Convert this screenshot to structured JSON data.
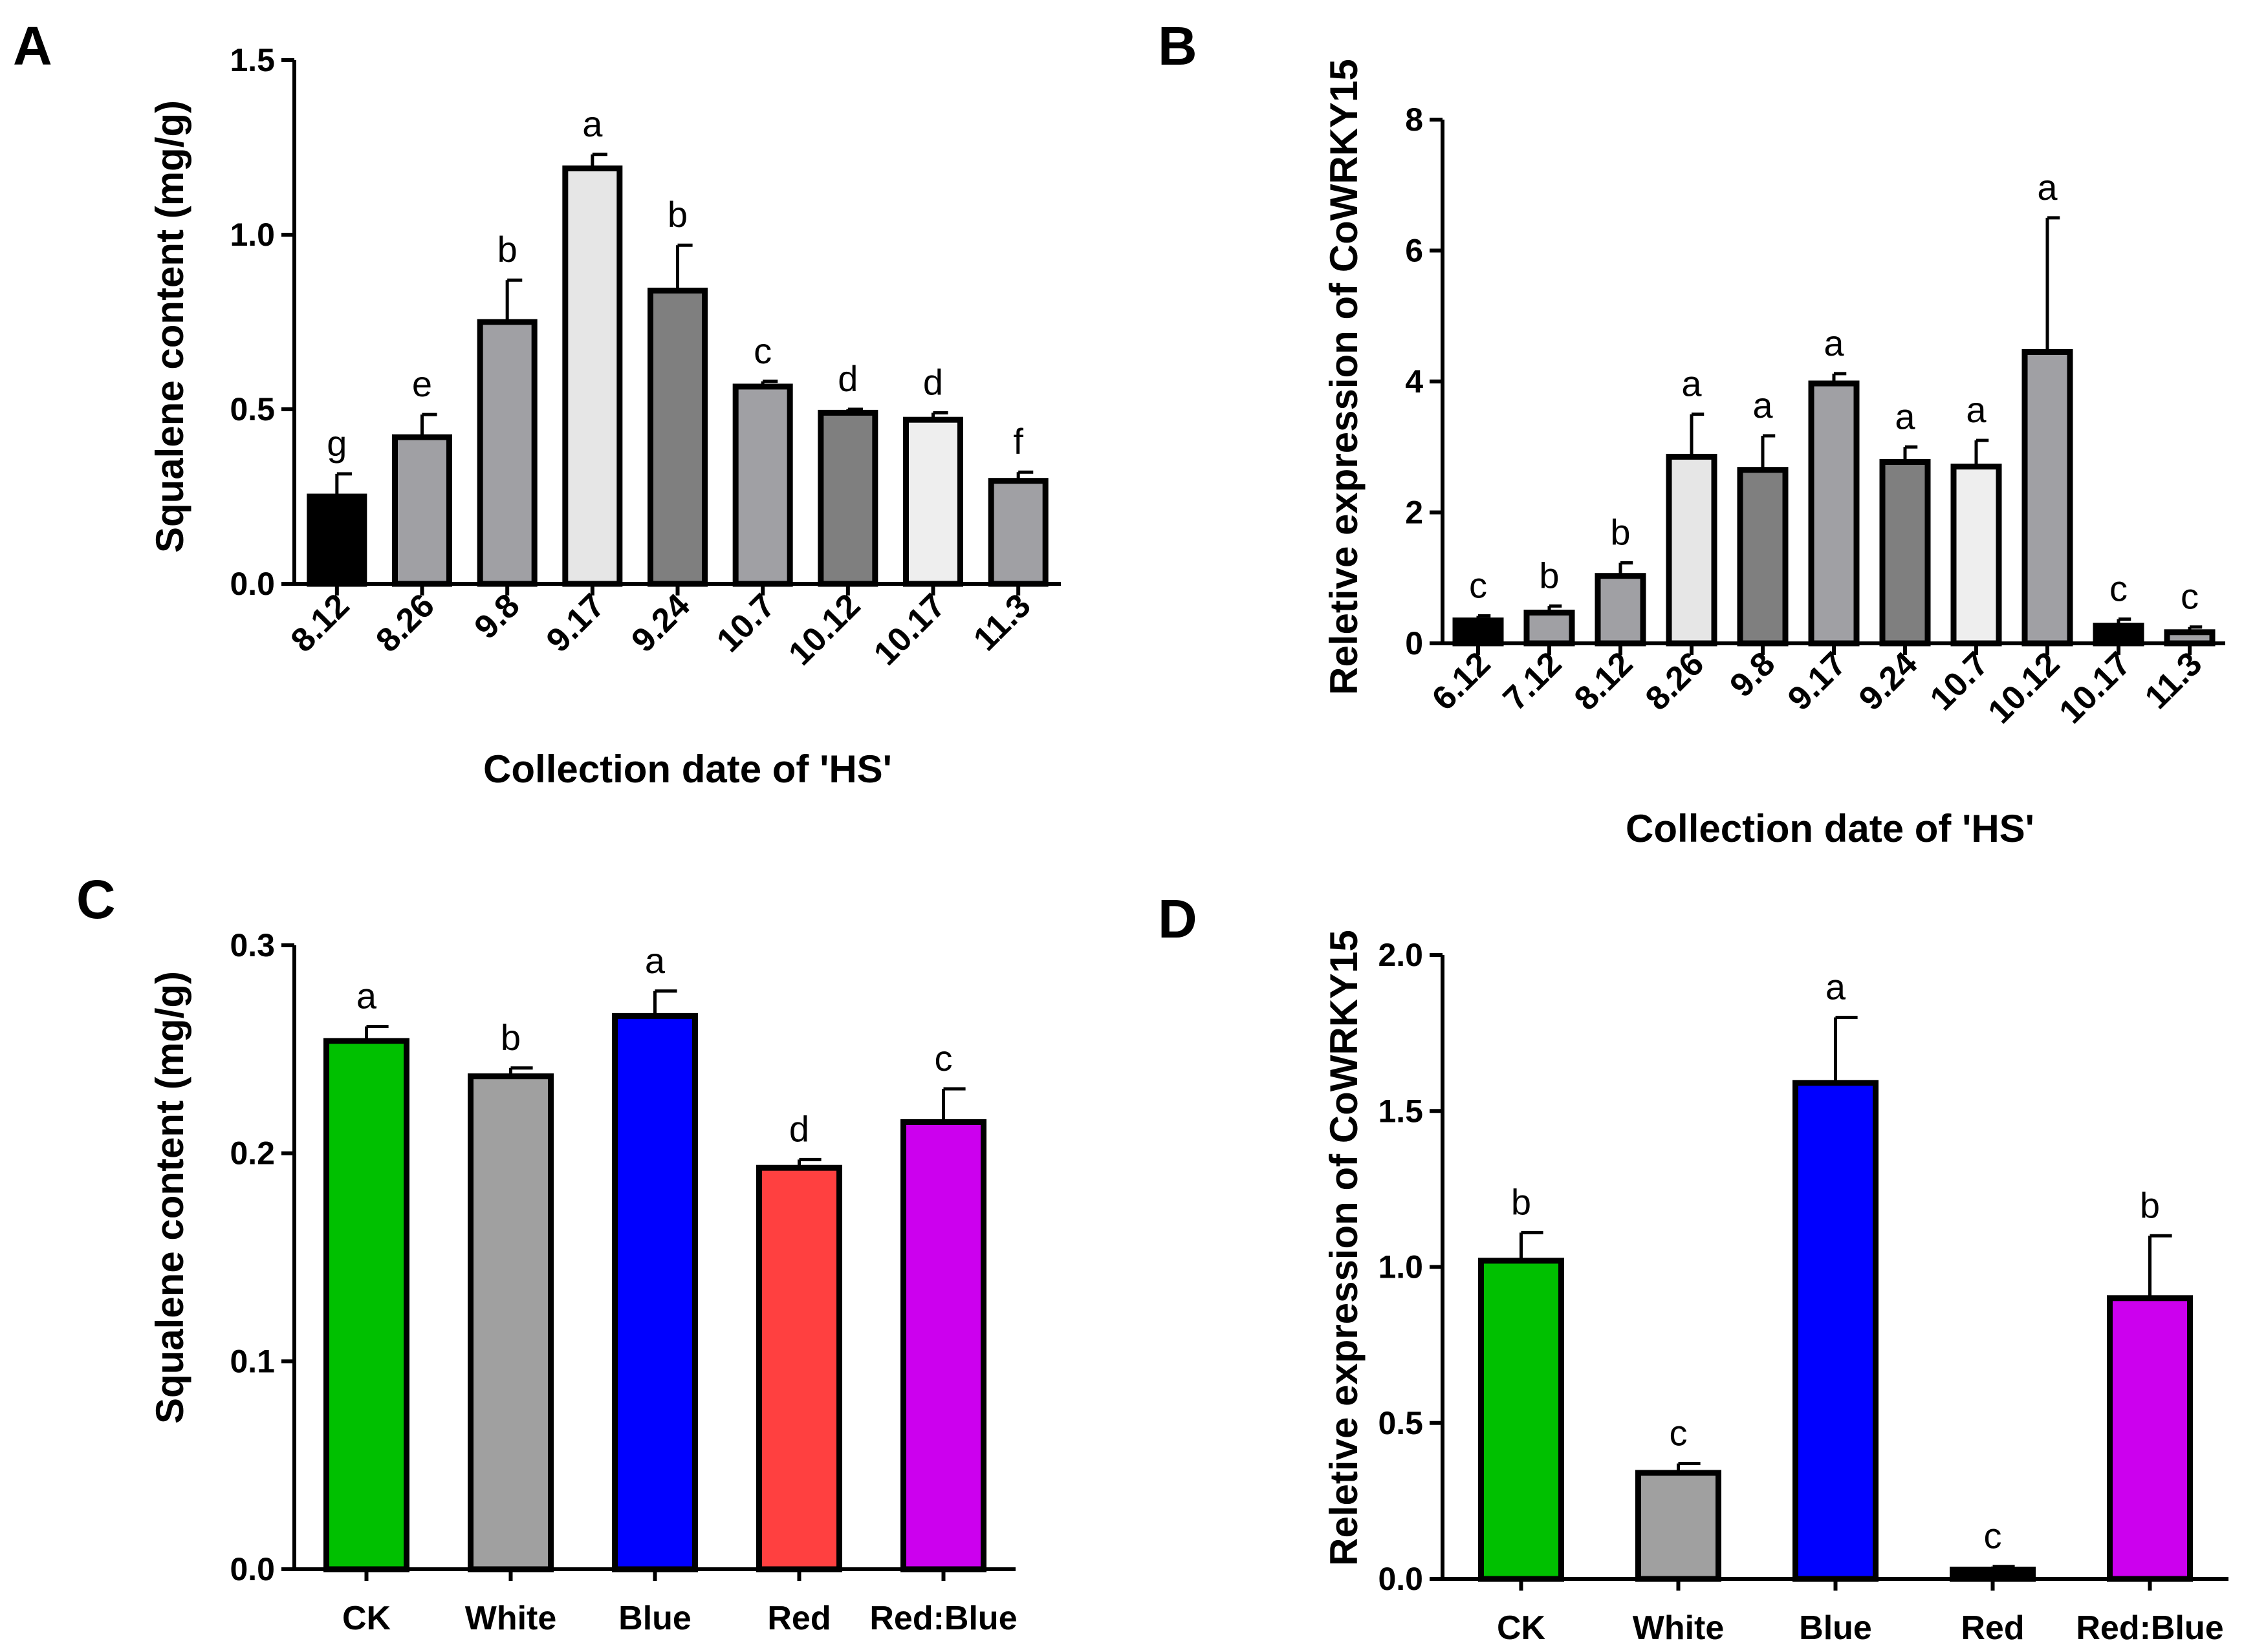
{
  "chart_data": [
    {
      "panel": "A",
      "type": "bar",
      "xlabel": "Collection date of 'HS'",
      "ylabel": "Squalene content (mg/g)",
      "ylim": [
        0,
        1.5
      ],
      "yticks": [
        "0.0",
        "0.5",
        "1.0",
        "1.5"
      ],
      "tick_values": [
        0,
        0.5,
        1.0,
        1.5
      ],
      "categories": [
        "8.12",
        "8.26",
        "9.8",
        "9.17",
        "9.24",
        "10.7",
        "10.12",
        "10.17",
        "11.3"
      ],
      "values": [
        0.25,
        0.42,
        0.75,
        1.19,
        0.84,
        0.565,
        0.49,
        0.47,
        0.295
      ],
      "errors": [
        0.065,
        0.065,
        0.12,
        0.04,
        0.13,
        0.015,
        0.01,
        0.02,
        0.025
      ],
      "letters": [
        "g",
        "e",
        "b",
        "a",
        "b",
        "c",
        "d",
        "d",
        "f"
      ],
      "colors": [
        "#000000",
        "#a0a0a4",
        "#a0a0a4",
        "#e6e6e6",
        "#7f7f7f",
        "#a0a0a4",
        "#7f7f7f",
        "#eeeeee",
        "#a0a0a4"
      ]
    },
    {
      "panel": "B",
      "type": "bar",
      "xlabel": "Collection date of 'HS'",
      "ylabel": "Reletive expression of CoWRKY15",
      "ylim": [
        0,
        8
      ],
      "yticks": [
        "0",
        "2",
        "4",
        "6",
        "8"
      ],
      "tick_values": [
        0,
        2,
        4,
        6,
        8
      ],
      "categories": [
        "6.12",
        "7.12",
        "8.12",
        "8.26",
        "9.8",
        "9.17",
        "9.24",
        "10.7",
        "10.12",
        "10.17",
        "11.3"
      ],
      "values": [
        0.35,
        0.47,
        1.03,
        2.85,
        2.65,
        3.97,
        2.77,
        2.7,
        4.45,
        0.27,
        0.17
      ],
      "errors": [
        0.07,
        0.1,
        0.2,
        0.65,
        0.52,
        0.15,
        0.23,
        0.4,
        2.05,
        0.1,
        0.08
      ],
      "letters": [
        "c",
        "b",
        "b",
        "a",
        "a",
        "a",
        "a",
        "a",
        "a",
        "c",
        "c"
      ],
      "colors": [
        "#000000",
        "#a0a0a4",
        "#a0a0a4",
        "#e6e6e6",
        "#7f7f7f",
        "#a0a0a4",
        "#7f7f7f",
        "#eeeeee",
        "#a0a0a4",
        "#000000",
        "#a0a0a4"
      ]
    },
    {
      "panel": "C",
      "type": "bar",
      "xlabel": "",
      "ylabel": "Squalene content (mg/g)",
      "ylim": [
        0,
        0.3
      ],
      "yticks": [
        "0.0",
        "0.1",
        "0.2",
        "0.3"
      ],
      "tick_values": [
        0,
        0.1,
        0.2,
        0.3
      ],
      "categories": [
        "CK",
        "White",
        "Blue",
        "Red",
        "Red:Blue"
      ],
      "values": [
        0.254,
        0.237,
        0.266,
        0.193,
        0.215
      ],
      "errors": [
        0.007,
        0.004,
        0.012,
        0.004,
        0.016
      ],
      "letters": [
        "a",
        "b",
        "a",
        "d",
        "c"
      ],
      "colors": [
        "#00c000",
        "#a0a0a0",
        "#0000ff",
        "#ff4040",
        "#cc00ee"
      ]
    },
    {
      "panel": "D",
      "type": "bar",
      "xlabel": "",
      "ylabel": "Reletive expression of CoWRKY15",
      "ylim": [
        0,
        2.0
      ],
      "yticks": [
        "0.0",
        "0.5",
        "1.0",
        "1.5",
        "2.0"
      ],
      "tick_values": [
        0,
        0.5,
        1.0,
        1.5,
        2.0
      ],
      "categories": [
        "CK",
        "White",
        "Blue",
        "Red",
        "Red:Blue"
      ],
      "values": [
        1.02,
        0.34,
        1.59,
        0.03,
        0.9
      ],
      "errors": [
        0.09,
        0.03,
        0.21,
        0.01,
        0.2
      ],
      "letters": [
        "b",
        "c",
        "a",
        "c",
        "b"
      ],
      "colors": [
        "#00c000",
        "#a0a0a0",
        "#0000ff",
        "#000000",
        "#cc00ee"
      ]
    }
  ]
}
